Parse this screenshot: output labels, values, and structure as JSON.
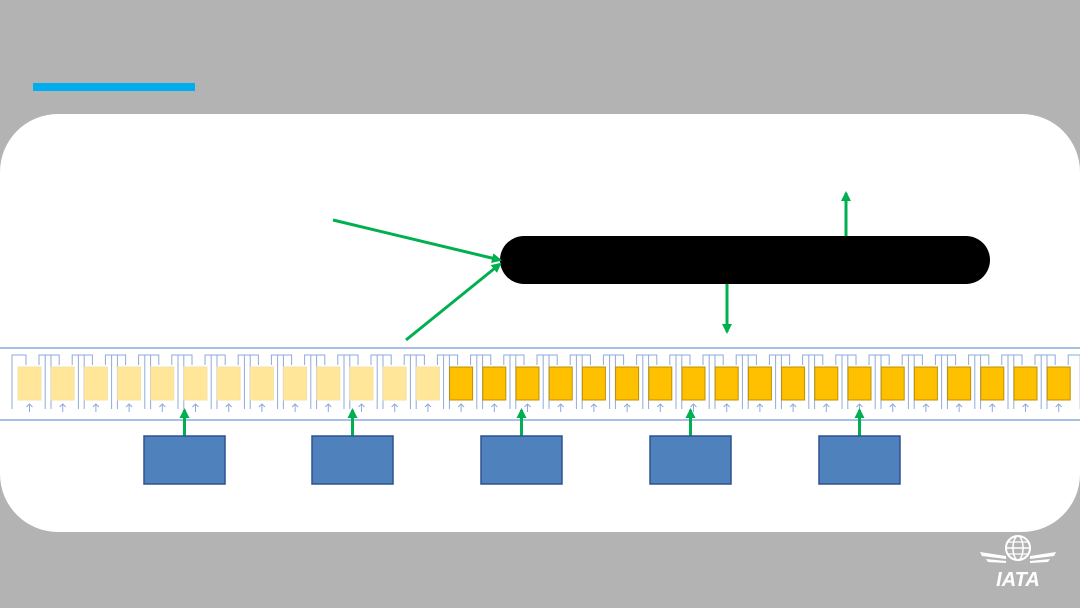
{
  "slide": {
    "title": "",
    "accent_color": "#00aeef",
    "background_color": "#b3b3b3",
    "panel_color": "#ffffff"
  },
  "diagram": {
    "arrow_color": "#00b050",
    "central_pill": {
      "label": "",
      "fill": "#000000"
    },
    "conveyor": {
      "track_color": "#8eaadb",
      "light_cells": 13,
      "dark_cells": 19,
      "light_color": "#ffe699",
      "dark_color": "#ffc000"
    },
    "input_boxes": [
      {
        "label": ""
      },
      {
        "label": ""
      },
      {
        "label": ""
      },
      {
        "label": ""
      },
      {
        "label": ""
      }
    ],
    "box_color": "#4f81bd"
  },
  "logo": {
    "text": "IATA",
    "icon": "globe-wings-icon"
  }
}
